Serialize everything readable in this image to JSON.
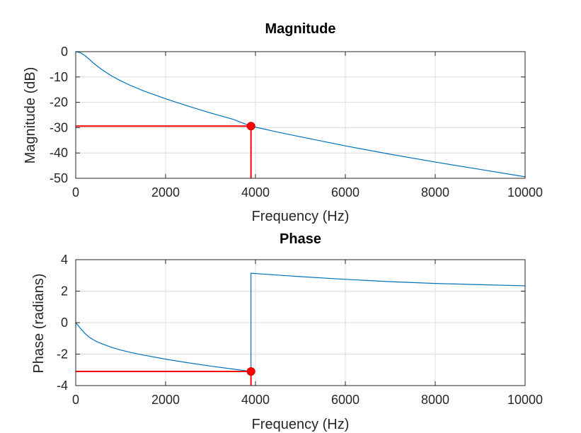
{
  "chart_data": [
    {
      "type": "line",
      "title": "Magnitude",
      "xlabel": "Frequency (Hz)",
      "ylabel": "Magnitude (dB)",
      "xlim": [
        0,
        10000
      ],
      "ylim": [
        -50,
        0
      ],
      "xticks": [
        0,
        2000,
        4000,
        6000,
        8000,
        10000
      ],
      "xtick_labels": [
        "0",
        "2000",
        "4000",
        "6000",
        "8000",
        "10000"
      ],
      "yticks": [
        0,
        -10,
        -20,
        -30,
        -40,
        -50
      ],
      "ytick_labels": [
        "0",
        "-10",
        "-20",
        "-30",
        "-40",
        "-50"
      ],
      "grid": true,
      "line_color": "#0072BD",
      "marker_color": "#FF0000",
      "series": [
        {
          "x": [
            0,
            100,
            200,
            300,
            400,
            500,
            600,
            800,
            1000,
            1200,
            1500,
            2000,
            2500,
            3000,
            3500,
            3900,
            4500,
            5000,
            6000,
            7000,
            8000,
            9000,
            10000
          ],
          "y": [
            0,
            -0.4,
            -1.5,
            -3.0,
            -4.6,
            -6.0,
            -7.3,
            -9.6,
            -11.5,
            -13.2,
            -15.4,
            -18.6,
            -21.5,
            -24.2,
            -26.7,
            -29.4,
            -31.8,
            -33.6,
            -37.2,
            -40.5,
            -43.6,
            -46.5,
            -49.4
          ]
        }
      ],
      "marker": {
        "x": 3900,
        "y": -29.4
      }
    },
    {
      "type": "line",
      "title": "Phase",
      "xlabel": "Frequency (Hz)",
      "ylabel": "Phase (radians)",
      "xlim": [
        0,
        10000
      ],
      "ylim": [
        -4,
        4
      ],
      "xticks": [
        0,
        2000,
        4000,
        6000,
        8000,
        10000
      ],
      "xtick_labels": [
        "0",
        "2000",
        "4000",
        "6000",
        "8000",
        "10000"
      ],
      "yticks": [
        4,
        2,
        0,
        -2,
        -4
      ],
      "ytick_labels": [
        "4",
        "2",
        "0",
        "-2",
        "-4"
      ],
      "grid": true,
      "line_color": "#0072BD",
      "marker_color": "#FF0000",
      "series": [
        {
          "x": [
            0,
            100,
            200,
            300,
            400,
            500,
            600,
            800,
            1000,
            1200,
            1500,
            2000,
            2500,
            3000,
            3500,
            3900,
            3900,
            4500,
            5000,
            6000,
            7000,
            8000,
            9000,
            10000
          ],
          "y": [
            0,
            -0.35,
            -0.67,
            -0.93,
            -1.1,
            -1.25,
            -1.36,
            -1.57,
            -1.74,
            -1.88,
            -2.06,
            -2.32,
            -2.55,
            -2.76,
            -2.95,
            -3.1,
            3.14,
            3.02,
            2.92,
            2.75,
            2.6,
            2.49,
            2.41,
            2.34
          ]
        }
      ],
      "marker": {
        "x": 3900,
        "y": -3.1
      }
    }
  ]
}
